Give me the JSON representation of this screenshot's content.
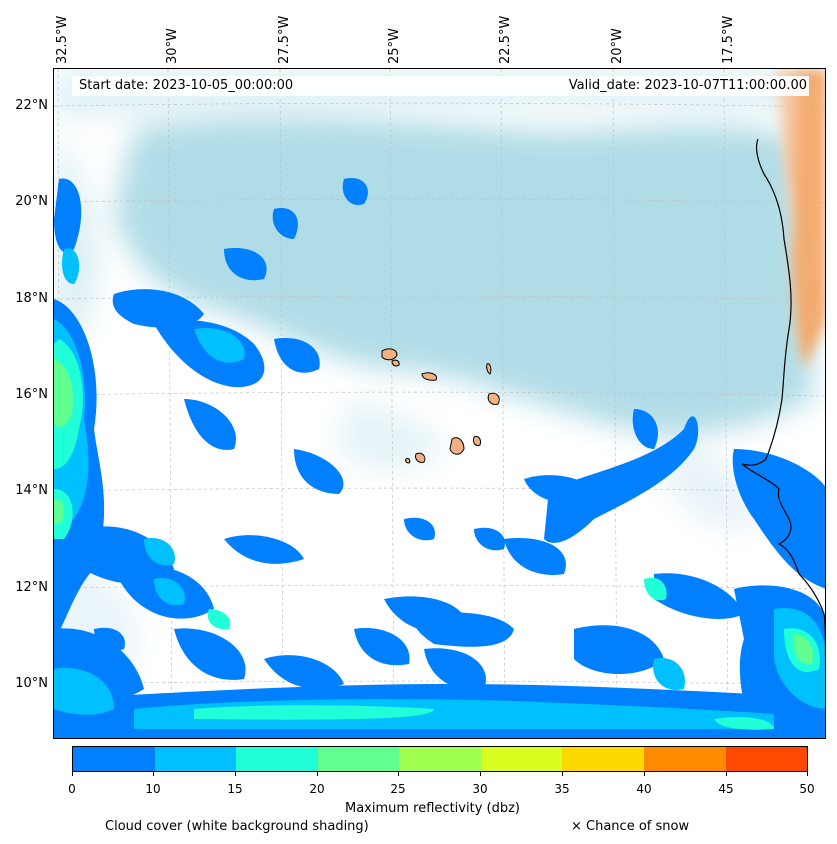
{
  "header": {
    "start_date": "Start date: 2023-10-05_00:00:00",
    "valid_date": "Valid_date: 2023-10-07T11:00:00.00"
  },
  "axes": {
    "lon_ticks": [
      "32.5°W",
      "30°W",
      "27.5°W",
      "25°W",
      "22.5°W",
      "20°W",
      "17.5°W"
    ],
    "lat_ticks": [
      "22°N",
      "20°N",
      "18°N",
      "16°N",
      "14°N",
      "12°N",
      "10°N"
    ],
    "gridlines": true
  },
  "colorbar": {
    "label": "Maximum reflectivity (dbz)",
    "ticks": [
      "0",
      "10",
      "15",
      "20",
      "25",
      "30",
      "35",
      "40",
      "45",
      "50"
    ],
    "colors": [
      "#0080ff",
      "#00c0ff",
      "#20ffd8",
      "#60ff90",
      "#a0ff50",
      "#d8ff20",
      "#ffd800",
      "#ff8c00",
      "#ff4800"
    ]
  },
  "legend": {
    "cloud_cover": "Cloud cover (white background shading)",
    "snow": "× Chance of snow"
  },
  "colors": {
    "cloud_shading": "#acdae6",
    "land": "#f4a460",
    "coastline": "#000000"
  }
}
